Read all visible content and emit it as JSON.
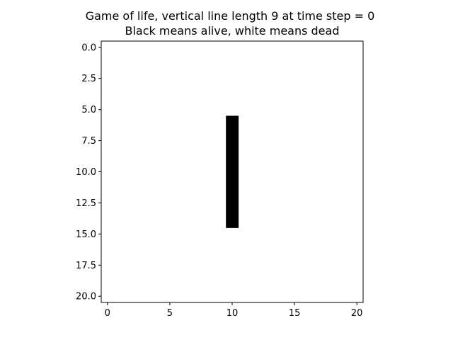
{
  "chart_data": {
    "type": "heatmap",
    "title": "Game of life, vertical line length 9 at time step = 0",
    "subtitle": "Black means alive, white means dead",
    "grid_size": [
      21,
      21
    ],
    "colors": {
      "alive": "#000000",
      "dead": "#ffffff"
    },
    "alive_cells": [
      {
        "row": 6,
        "col": 10
      },
      {
        "row": 7,
        "col": 10
      },
      {
        "row": 8,
        "col": 10
      },
      {
        "row": 9,
        "col": 10
      },
      {
        "row": 10,
        "col": 10
      },
      {
        "row": 11,
        "col": 10
      },
      {
        "row": 12,
        "col": 10
      },
      {
        "row": 13,
        "col": 10
      },
      {
        "row": 14,
        "col": 10
      }
    ],
    "xlim": [
      -0.5,
      20.5
    ],
    "ylim": [
      20.5,
      -0.5
    ],
    "x_ticks": [
      0,
      5,
      10,
      15,
      20
    ],
    "x_tick_labels": [
      "0",
      "5",
      "10",
      "15",
      "20"
    ],
    "y_ticks": [
      0,
      2.5,
      5,
      7.5,
      10,
      12.5,
      15,
      17.5,
      20
    ],
    "y_tick_labels": [
      "0.0",
      "2.5",
      "5.0",
      "7.5",
      "10.0",
      "12.5",
      "15.0",
      "17.5",
      "20.0"
    ],
    "xlabel": "",
    "ylabel": "",
    "grid": false
  }
}
